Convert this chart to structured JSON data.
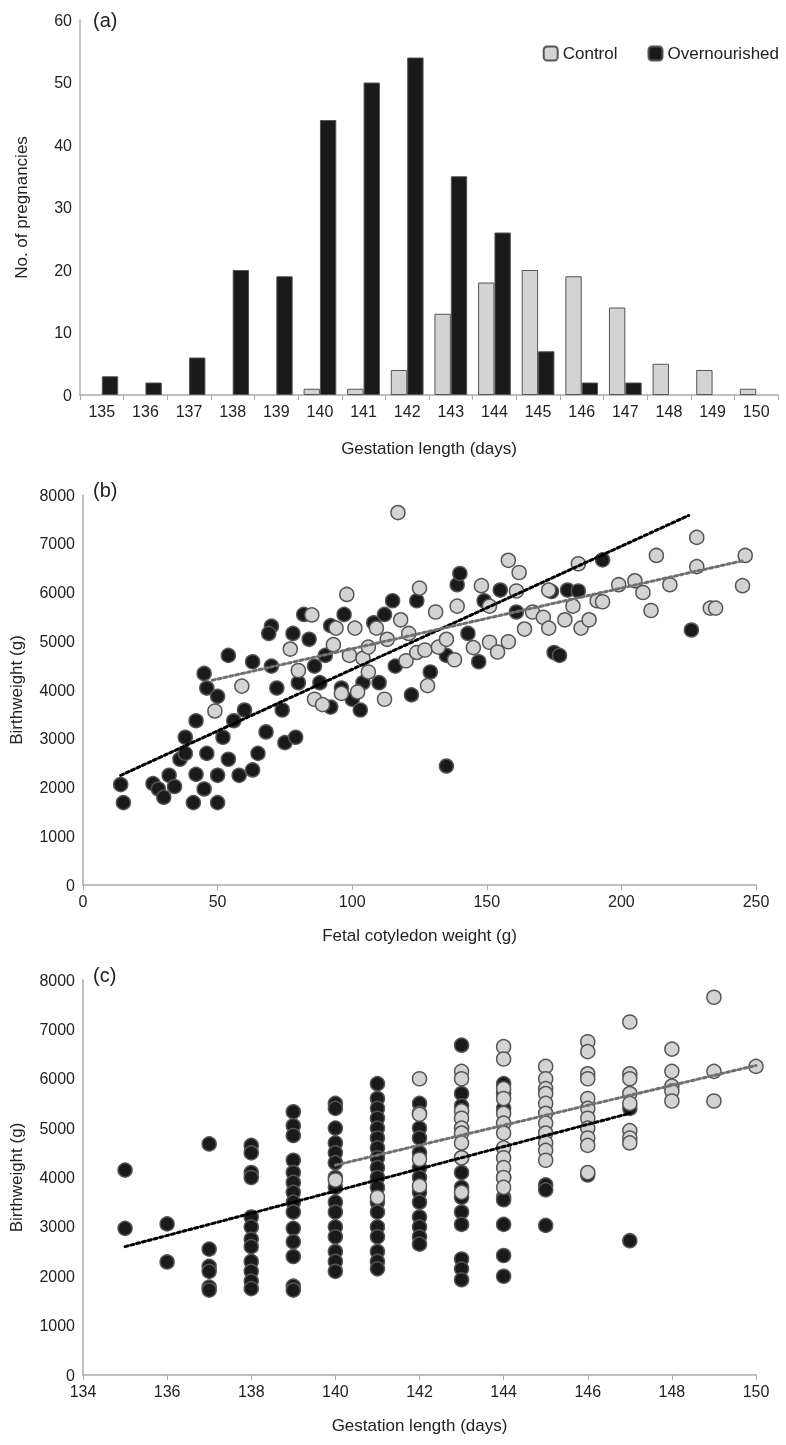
{
  "chart_data": [
    {
      "type": "bar",
      "title": "(a)",
      "xlabel": "Gestation length (days)",
      "ylabel": "No. of pregnancies",
      "categories": [
        "135",
        "136",
        "137",
        "138",
        "139",
        "140",
        "141",
        "142",
        "143",
        "144",
        "145",
        "146",
        "147",
        "148",
        "149",
        "150"
      ],
      "ylim": [
        0,
        60
      ],
      "yticks": [
        0,
        10,
        20,
        30,
        40,
        50,
        60
      ],
      "grid": false,
      "legend": "top right",
      "series": [
        {
          "name": "Control",
          "color": "#d3d3d3",
          "values": [
            0,
            0,
            0,
            0,
            0,
            1,
            1,
            4,
            13,
            18,
            20,
            19,
            14,
            5,
            4,
            1
          ]
        },
        {
          "name": "Overnourished",
          "color": "#1a1a1a",
          "values": [
            3,
            2,
            6,
            20,
            19,
            44,
            50,
            54,
            35,
            26,
            7,
            2,
            2,
            0,
            0,
            0
          ]
        }
      ]
    },
    {
      "type": "scatter",
      "title": "(b)",
      "xlabel": "Fetal cotyledon weight (g)",
      "ylabel": "Birthweight (g)",
      "xlim": [
        0,
        250
      ],
      "xticks": [
        0,
        50,
        100,
        150,
        200,
        250
      ],
      "ylim": [
        0,
        8000
      ],
      "yticks": [
        0,
        1000,
        2000,
        3000,
        4000,
        5000,
        6000,
        7000,
        8000
      ],
      "grid": false,
      "marker": "circle",
      "series": [
        {
          "color": "#1a1a1a",
          "x": [
            14,
            15,
            26,
            28,
            30,
            32,
            34,
            36,
            38,
            41,
            42,
            42,
            38,
            45,
            46,
            45,
            46,
            50,
            50,
            50,
            54,
            52,
            54,
            56,
            58,
            60,
            63,
            63,
            65,
            68,
            70,
            70,
            69,
            72,
            74,
            75,
            78,
            79,
            80,
            82,
            84,
            86,
            88,
            90,
            92,
            92,
            96,
            97,
            100,
            103,
            104,
            108,
            110,
            112,
            115,
            116,
            122,
            124,
            129,
            135,
            135,
            139,
            140,
            143,
            147,
            149,
            155,
            161,
            174,
            175,
            177,
            180,
            184,
            193,
            226
          ],
          "values": [
            2060,
            1690,
            2080,
            1970,
            1800,
            2250,
            2020,
            2580,
            2700,
            1690,
            2270,
            3370,
            3030,
            4340,
            4040,
            1970,
            2700,
            1690,
            3870,
            2250,
            4710,
            3030,
            2580,
            3370,
            2250,
            3590,
            4580,
            2360,
            2700,
            3140,
            4490,
            5310,
            5160,
            4040,
            3590,
            2920,
            5160,
            3030,
            4150,
            5550,
            5040,
            4490,
            4150,
            4710,
            5320,
            3650,
            4040,
            5550,
            3810,
            3590,
            4150,
            5380,
            4150,
            5550,
            5830,
            4490,
            3900,
            5830,
            4370,
            2440,
            4710,
            6160,
            6390,
            5160,
            4580,
            5830,
            6050,
            5600,
            6020,
            4770,
            4710,
            6050,
            6030,
            6670,
            5230
          ]
        },
        {
          "color": "#d3d3d3",
          "x": [
            49,
            59,
            77,
            80,
            85,
            86,
            89,
            93,
            94,
            96,
            98,
            99,
            101,
            102,
            104,
            106,
            106,
            109,
            112,
            113,
            117,
            118,
            120,
            121,
            124,
            125,
            127,
            128,
            131,
            132,
            135,
            138,
            139,
            145,
            148,
            151,
            151,
            154,
            158,
            158,
            161,
            162,
            164,
            167,
            171,
            173,
            173,
            179,
            182,
            184,
            185,
            188,
            191,
            193,
            199,
            205,
            208,
            211,
            213,
            218,
            228,
            228,
            233,
            235,
            245,
            246
          ],
          "values": [
            3570,
            4080,
            4840,
            4400,
            5540,
            3810,
            3700,
            4930,
            5270,
            3930,
            5960,
            4710,
            5270,
            3960,
            4650,
            4880,
            4370,
            5270,
            3810,
            5040,
            7640,
            5440,
            4600,
            5160,
            4770,
            6090,
            4820,
            4090,
            5600,
            4880,
            5040,
            4620,
            5720,
            4870,
            6140,
            5720,
            4980,
            4780,
            6660,
            4990,
            6030,
            6410,
            5250,
            5600,
            5490,
            6050,
            5270,
            5440,
            5720,
            6590,
            5270,
            5440,
            5830,
            5810,
            6160,
            6240,
            6000,
            5630,
            6760,
            6160,
            7130,
            6530,
            5680,
            5680,
            6140,
            6760
          ]
        },
        {
          "type": "line",
          "color": "#000000",
          "line_style": "dotted",
          "marker": "none",
          "x": [
            14,
            225
          ],
          "values": [
            2250,
            7580
          ]
        },
        {
          "type": "line",
          "color": "#707070",
          "line_style": "dotted",
          "marker": "none",
          "x": [
            48,
            245
          ],
          "values": [
            4200,
            6650
          ]
        }
      ]
    },
    {
      "type": "scatter",
      "title": "(c)",
      "xlabel": "Gestation length (days)",
      "ylabel": "Birthweight (g)",
      "xlim": [
        134,
        150
      ],
      "xticks": [
        134,
        136,
        138,
        140,
        142,
        144,
        146,
        148,
        150
      ],
      "ylim": [
        0,
        8000
      ],
      "yticks": [
        0,
        1000,
        2000,
        3000,
        4000,
        5000,
        6000,
        7000,
        8000
      ],
      "grid": false,
      "marker": "circle",
      "series": [
        {
          "color": "#1a1a1a",
          "x": [
            135,
            135,
            136,
            136,
            137,
            137,
            137,
            137,
            137,
            137,
            138,
            138,
            138,
            138,
            138,
            138,
            138,
            138,
            138,
            138,
            138,
            138,
            139,
            139,
            139,
            139,
            139,
            139,
            139,
            139,
            139,
            139,
            139,
            139,
            139,
            139,
            140,
            140,
            140,
            140,
            140,
            140,
            140,
            140,
            140,
            140,
            140,
            140,
            140,
            140,
            140,
            141,
            141,
            141,
            141,
            141,
            141,
            141,
            141,
            141,
            141,
            141,
            141,
            141,
            141,
            141,
            141,
            141,
            141,
            142,
            142,
            142,
            142,
            142,
            142,
            142,
            142,
            142,
            142,
            142,
            142,
            142,
            143,
            143,
            143,
            143,
            143,
            143,
            143,
            143,
            143,
            143,
            143,
            143,
            143,
            144,
            144,
            144,
            144,
            144,
            144,
            144,
            144,
            144,
            145,
            145,
            145,
            146,
            147,
            147
          ],
          "values": [
            4150,
            2970,
            3060,
            2290,
            4680,
            2550,
            2200,
            2100,
            1780,
            1720,
            4650,
            4500,
            4100,
            4000,
            3200,
            3000,
            2750,
            2600,
            2300,
            2100,
            1900,
            1750,
            5330,
            5050,
            4850,
            4350,
            4100,
            3900,
            3700,
            3500,
            3300,
            2970,
            2700,
            2400,
            1800,
            1720,
            5500,
            5400,
            5000,
            4700,
            4500,
            4300,
            4000,
            3800,
            3500,
            3300,
            3000,
            2800,
            2500,
            2300,
            2100,
            5900,
            5600,
            5400,
            5200,
            5000,
            4800,
            4600,
            4400,
            4200,
            4000,
            3800,
            3500,
            3300,
            3000,
            2800,
            2500,
            2300,
            2150,
            5500,
            5300,
            5000,
            4800,
            4500,
            4200,
            4000,
            3700,
            3500,
            3200,
            3000,
            2800,
            2650,
            6680,
            5700,
            5450,
            5000,
            4400,
            4100,
            3800,
            3600,
            3300,
            3050,
            2350,
            2150,
            1930,
            5900,
            5700,
            5400,
            4000,
            3600,
            3550,
            3050,
            2420,
            2000,
            3850,
            3750,
            3030,
            4050,
            5400,
            2720
          ]
        },
        {
          "color": "#d3d3d3",
          "x": [
            140,
            141,
            142,
            142,
            142,
            142,
            143,
            143,
            143,
            143,
            143,
            143,
            143,
            143,
            143,
            144,
            144,
            144,
            144,
            144,
            144,
            144,
            144,
            144,
            144,
            144,
            144,
            145,
            145,
            145,
            145,
            145,
            145,
            145,
            145,
            145,
            145,
            145,
            146,
            146,
            146,
            146,
            146,
            146,
            146,
            146,
            146,
            146,
            146,
            147,
            147,
            147,
            147,
            147,
            147,
            147,
            147,
            148,
            148,
            148,
            148,
            148,
            149,
            149,
            149,
            150
          ],
          "values": [
            3950,
            3600,
            6000,
            5280,
            4370,
            3830,
            6150,
            6000,
            5350,
            5200,
            5000,
            4900,
            4700,
            4400,
            3700,
            6650,
            6400,
            5800,
            5600,
            5300,
            5100,
            4900,
            4600,
            4400,
            4200,
            4000,
            3800,
            6250,
            6000,
            5800,
            5700,
            5500,
            5300,
            5100,
            4900,
            4700,
            4550,
            4350,
            6750,
            6550,
            6100,
            6000,
            5600,
            5400,
            5200,
            5000,
            4800,
            4650,
            4100,
            7150,
            6100,
            6000,
            5700,
            5500,
            4950,
            4800,
            4700,
            6600,
            6150,
            5850,
            5750,
            5550,
            7650,
            6150,
            5550,
            6250
          ]
        },
        {
          "type": "line",
          "color": "#000000",
          "line_style": "dotted",
          "marker": "none",
          "x": [
            135,
            147
          ],
          "values": [
            2600,
            5300
          ]
        },
        {
          "type": "line",
          "color": "#707070",
          "line_style": "dotted",
          "marker": "none",
          "x": [
            140,
            150
          ],
          "values": [
            4250,
            6270
          ]
        }
      ]
    }
  ]
}
